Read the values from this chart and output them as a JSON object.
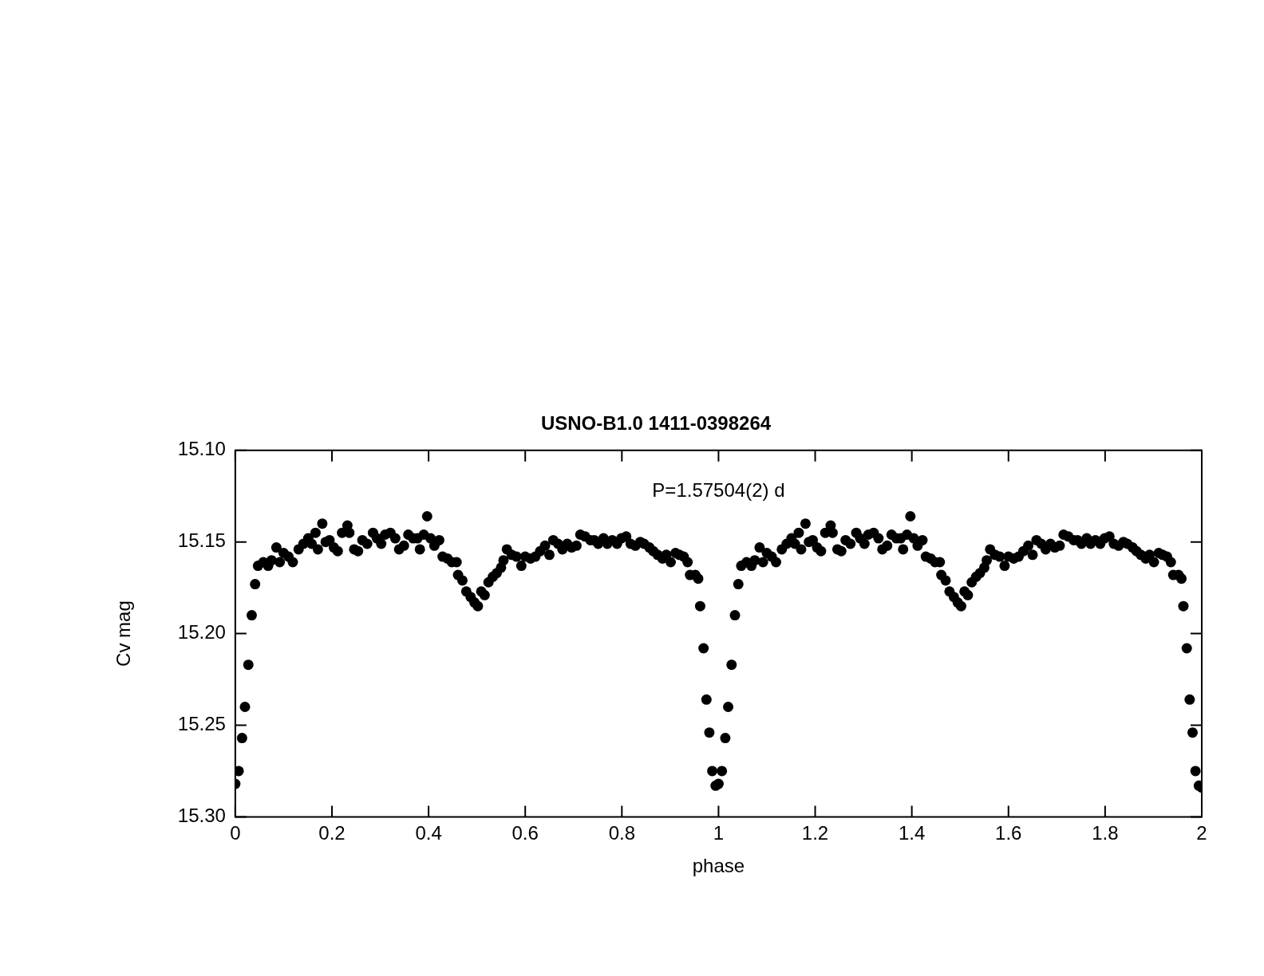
{
  "chart_data": {
    "type": "scatter",
    "title": "USNO-B1.0 1411-0398264",
    "xlabel": "phase",
    "ylabel": "Cv mag",
    "annotations": [
      "P=1.57504(2) d"
    ],
    "marker": "circle",
    "xlim": [
      0,
      2
    ],
    "xticks": [
      0,
      0.2,
      0.4,
      0.6,
      0.8,
      1,
      1.2,
      1.4,
      1.6,
      1.8,
      2
    ],
    "ylim": [
      15.3,
      15.1
    ],
    "yticks": [
      {
        "value": 15.1,
        "label": "15.10"
      },
      {
        "value": 15.15,
        "label": "15.15"
      },
      {
        "value": 15.2,
        "label": "15.20"
      },
      {
        "value": 15.25,
        "label": "15.25"
      },
      {
        "value": 15.3,
        "label": "15.30"
      }
    ],
    "series": [
      {
        "color": "#000000",
        "x": [
          0.0,
          0.007,
          0.014,
          0.02,
          0.027,
          0.034,
          0.041,
          0.047,
          0.058,
          0.068,
          0.075,
          0.085,
          0.092,
          0.1,
          0.11,
          0.119,
          0.131,
          0.141,
          0.151,
          0.158,
          0.166,
          0.171,
          0.18,
          0.187,
          0.195,
          0.204,
          0.212,
          0.221,
          0.232,
          0.236,
          0.246,
          0.254,
          0.263,
          0.273,
          0.285,
          0.293,
          0.302,
          0.31,
          0.321,
          0.331,
          0.339,
          0.349,
          0.358,
          0.368,
          0.377,
          0.382,
          0.39,
          0.397,
          0.404,
          0.412,
          0.422,
          0.429,
          0.439,
          0.448,
          0.458,
          0.461,
          0.47,
          0.478,
          0.487,
          0.495,
          0.502,
          0.509,
          0.516,
          0.524,
          0.533,
          0.541,
          0.55,
          0.555,
          0.562,
          0.572,
          0.582,
          0.592,
          0.6,
          0.611,
          0.621,
          0.631,
          0.641,
          0.65,
          0.658,
          0.668,
          0.677,
          0.687,
          0.696,
          0.706,
          0.714,
          0.724,
          0.735,
          0.743,
          0.751,
          0.762,
          0.77,
          0.78,
          0.79,
          0.799,
          0.809,
          0.818,
          0.828,
          0.838,
          0.846,
          0.857,
          0.865,
          0.874,
          0.884,
          0.892,
          0.901,
          0.911,
          0.919,
          0.928,
          0.936,
          0.941,
          0.952,
          0.958,
          0.962,
          0.969,
          0.975,
          0.981,
          0.987,
          0.994,
          1.0,
          1.007,
          1.014,
          1.02,
          1.027,
          1.034,
          1.041,
          1.047,
          1.058,
          1.068,
          1.075,
          1.085,
          1.092,
          1.1,
          1.11,
          1.119,
          1.131,
          1.141,
          1.151,
          1.158,
          1.166,
          1.171,
          1.18,
          1.187,
          1.195,
          1.204,
          1.212,
          1.221,
          1.232,
          1.236,
          1.246,
          1.254,
          1.263,
          1.273,
          1.285,
          1.293,
          1.302,
          1.31,
          1.321,
          1.331,
          1.339,
          1.349,
          1.358,
          1.368,
          1.377,
          1.382,
          1.39,
          1.397,
          1.404,
          1.412,
          1.422,
          1.429,
          1.439,
          1.448,
          1.458,
          1.461,
          1.47,
          1.478,
          1.487,
          1.495,
          1.502,
          1.509,
          1.516,
          1.524,
          1.533,
          1.541,
          1.55,
          1.555,
          1.562,
          1.572,
          1.582,
          1.592,
          1.6,
          1.611,
          1.621,
          1.631,
          1.641,
          1.65,
          1.658,
          1.668,
          1.677,
          1.687,
          1.696,
          1.706,
          1.714,
          1.724,
          1.735,
          1.743,
          1.751,
          1.762,
          1.77,
          1.78,
          1.79,
          1.799,
          1.809,
          1.818,
          1.828,
          1.838,
          1.846,
          1.857,
          1.865,
          1.874,
          1.884,
          1.892,
          1.901,
          1.911,
          1.919,
          1.928,
          1.936,
          1.941,
          1.952,
          1.958,
          1.962,
          1.969,
          1.975,
          1.981,
          1.987,
          1.994,
          2.0
        ],
        "values": [
          15.282,
          15.275,
          15.257,
          15.24,
          15.217,
          15.19,
          15.173,
          15.163,
          15.161,
          15.163,
          15.16,
          15.153,
          15.161,
          15.156,
          15.158,
          15.161,
          15.154,
          15.151,
          15.148,
          15.151,
          15.145,
          15.154,
          15.14,
          15.15,
          15.149,
          15.153,
          15.155,
          15.145,
          15.141,
          15.145,
          15.154,
          15.155,
          15.149,
          15.151,
          15.145,
          15.148,
          15.151,
          15.146,
          15.145,
          15.148,
          15.154,
          15.152,
          15.146,
          15.148,
          15.148,
          15.154,
          15.146,
          15.136,
          15.148,
          15.152,
          15.149,
          15.158,
          15.159,
          15.161,
          15.161,
          15.168,
          15.171,
          15.177,
          15.18,
          15.183,
          15.185,
          15.177,
          15.179,
          15.172,
          15.169,
          15.167,
          15.164,
          15.16,
          15.154,
          15.157,
          15.158,
          15.163,
          15.158,
          15.159,
          15.158,
          15.155,
          15.152,
          15.157,
          15.149,
          15.151,
          15.154,
          15.151,
          15.153,
          15.152,
          15.146,
          15.147,
          15.149,
          15.149,
          15.151,
          15.148,
          15.151,
          15.149,
          15.151,
          15.148,
          15.147,
          15.151,
          15.152,
          15.15,
          15.151,
          15.153,
          15.155,
          15.157,
          15.159,
          15.157,
          15.161,
          15.156,
          15.157,
          15.158,
          15.161,
          15.168,
          15.168,
          15.17,
          15.185,
          15.208,
          15.236,
          15.254,
          15.275,
          15.283,
          15.282,
          15.275,
          15.257,
          15.24,
          15.217,
          15.19,
          15.173,
          15.163,
          15.161,
          15.163,
          15.16,
          15.153,
          15.161,
          15.156,
          15.158,
          15.161,
          15.154,
          15.151,
          15.148,
          15.151,
          15.145,
          15.154,
          15.14,
          15.15,
          15.149,
          15.153,
          15.155,
          15.145,
          15.141,
          15.145,
          15.154,
          15.155,
          15.149,
          15.151,
          15.145,
          15.148,
          15.151,
          15.146,
          15.145,
          15.148,
          15.154,
          15.152,
          15.146,
          15.148,
          15.148,
          15.154,
          15.146,
          15.136,
          15.148,
          15.152,
          15.149,
          15.158,
          15.159,
          15.161,
          15.161,
          15.168,
          15.171,
          15.177,
          15.18,
          15.183,
          15.185,
          15.177,
          15.179,
          15.172,
          15.169,
          15.167,
          15.164,
          15.16,
          15.154,
          15.157,
          15.158,
          15.163,
          15.158,
          15.159,
          15.158,
          15.155,
          15.152,
          15.157,
          15.149,
          15.151,
          15.154,
          15.151,
          15.153,
          15.152,
          15.146,
          15.147,
          15.149,
          15.149,
          15.151,
          15.148,
          15.151,
          15.149,
          15.151,
          15.148,
          15.147,
          15.151,
          15.152,
          15.15,
          15.151,
          15.153,
          15.155,
          15.157,
          15.159,
          15.157,
          15.161,
          15.156,
          15.157,
          15.158,
          15.161,
          15.168,
          15.168,
          15.17,
          15.185,
          15.208,
          15.236,
          15.254,
          15.275,
          15.283,
          15.284
        ]
      }
    ]
  }
}
